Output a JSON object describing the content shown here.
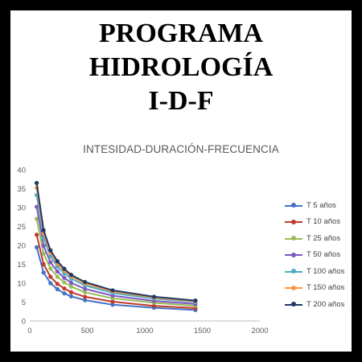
{
  "header": {
    "line1": "PROGRAMA",
    "line2": "HIDROLOGÍA",
    "line3": "I-D-F"
  },
  "chart_data": {
    "type": "line",
    "title": "INTESIDAD-DURACIÓN-FRECUENCIA",
    "xlabel": "",
    "ylabel": "",
    "xlim": [
      0,
      2000
    ],
    "ylim": [
      0,
      40
    ],
    "x_ticks": [
      0,
      500,
      1000,
      1500,
      2000
    ],
    "y_ticks": [
      0,
      5,
      10,
      15,
      20,
      25,
      30,
      35,
      40
    ],
    "grid": false,
    "legend_position": "right",
    "x": [
      60,
      120,
      180,
      240,
      300,
      360,
      480,
      720,
      1080,
      1440
    ],
    "series": [
      {
        "name": "T  5 años",
        "color": "#4472C4",
        "values": [
          19.5,
          12.8,
          10.0,
          8.4,
          7.3,
          6.5,
          5.5,
          4.3,
          3.5,
          2.9
        ]
      },
      {
        "name": "T  10 años",
        "color": "#C0392B",
        "values": [
          22.8,
          15.0,
          11.7,
          9.8,
          8.6,
          7.6,
          6.4,
          5.1,
          4.0,
          3.4
        ]
      },
      {
        "name": "T  25 años",
        "color": "#9BBB59",
        "values": [
          27.0,
          17.8,
          13.9,
          11.7,
          10.2,
          9.1,
          7.6,
          6.0,
          4.8,
          4.0
        ]
      },
      {
        "name": "T  50 años",
        "color": "#7E57C2",
        "values": [
          30.2,
          19.9,
          15.5,
          13.1,
          11.4,
          10.1,
          8.5,
          6.7,
          5.3,
          4.5
        ]
      },
      {
        "name": "T  100 años",
        "color": "#4BACC6",
        "values": [
          33.3,
          22.0,
          17.1,
          14.4,
          12.6,
          11.2,
          9.4,
          7.4,
          5.9,
          5.0
        ]
      },
      {
        "name": "T  150 años",
        "color": "#F79646",
        "values": [
          35.2,
          23.2,
          18.1,
          15.2,
          13.3,
          11.8,
          9.9,
          7.8,
          6.2,
          5.2
        ]
      },
      {
        "name": "T  200 años",
        "color": "#1F3864",
        "values": [
          36.5,
          24.0,
          18.7,
          15.8,
          13.8,
          12.2,
          10.3,
          8.1,
          6.4,
          5.4
        ]
      }
    ]
  }
}
